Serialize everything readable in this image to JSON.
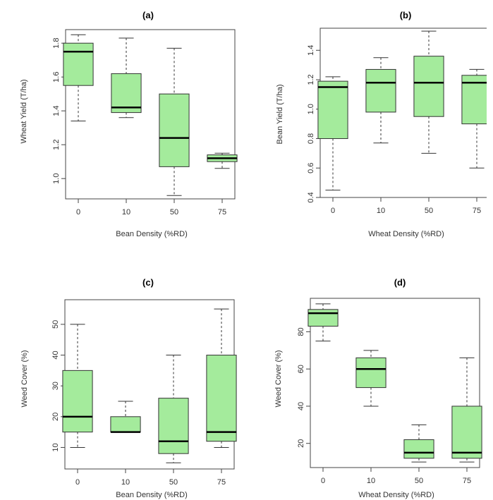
{
  "colors": {
    "box_fill": "#a4eb9c",
    "box_stroke": "#333333",
    "median": "#000000",
    "frame": "#444444"
  },
  "chart_data": [
    {
      "type": "box",
      "title": "(a)",
      "xlabel": "Bean Density (%RD)",
      "ylabel": "Wheat Yield (T/ha)",
      "categories": [
        "0",
        "10",
        "50",
        "75"
      ],
      "ylim": [
        0.88,
        1.88
      ],
      "yticks": [
        "1.0",
        "1.2",
        "1.4",
        "1.6",
        "1.8"
      ],
      "boxes": [
        {
          "min": 1.34,
          "q1": 1.55,
          "median": 1.75,
          "q3": 1.8,
          "max": 1.85
        },
        {
          "min": 1.36,
          "q1": 1.39,
          "median": 1.42,
          "q3": 1.62,
          "max": 1.83
        },
        {
          "min": 0.9,
          "q1": 1.07,
          "median": 1.24,
          "q3": 1.5,
          "max": 1.77
        },
        {
          "min": 1.06,
          "q1": 1.1,
          "median": 1.12,
          "q3": 1.14,
          "max": 1.15
        }
      ]
    },
    {
      "type": "box",
      "title": "(b)",
      "xlabel": "Wheat Density (%RD)",
      "ylabel": "Bean Yield (T/ha)",
      "categories": [
        "0",
        "10",
        "50",
        "75"
      ],
      "ylim": [
        0.4,
        1.55
      ],
      "yticks": [
        "0.4",
        "0.6",
        "0.8",
        "1.0",
        "1.2",
        "1.4"
      ],
      "boxes": [
        {
          "min": 0.45,
          "q1": 0.8,
          "median": 1.15,
          "q3": 1.19,
          "max": 1.22
        },
        {
          "min": 0.77,
          "q1": 0.98,
          "median": 1.18,
          "q3": 1.27,
          "max": 1.35
        },
        {
          "min": 0.7,
          "q1": 0.95,
          "median": 1.18,
          "q3": 1.36,
          "max": 1.53
        },
        {
          "min": 0.6,
          "q1": 0.9,
          "median": 1.18,
          "q3": 1.23,
          "max": 1.27
        }
      ]
    },
    {
      "type": "box",
      "title": "(c)",
      "xlabel": "Bean Density (%RD)",
      "ylabel": "Weed Cover (%)",
      "categories": [
        "0",
        "10",
        "50",
        "75"
      ],
      "ylim": [
        3,
        58
      ],
      "yticks": [
        "10",
        "20",
        "30",
        "40",
        "50"
      ],
      "boxes": [
        {
          "min": 10,
          "q1": 15,
          "median": 20,
          "q3": 35,
          "max": 50
        },
        {
          "min": 15,
          "q1": 15,
          "median": 15,
          "q3": 20,
          "max": 25
        },
        {
          "min": 5,
          "q1": 8,
          "median": 12,
          "q3": 26,
          "max": 40
        },
        {
          "min": 10,
          "q1": 12,
          "median": 15,
          "q3": 40,
          "max": 55
        }
      ]
    },
    {
      "type": "box",
      "title": "(d)",
      "xlabel": "Wheat Density (%RD)",
      "ylabel": "Weed Cover (%)",
      "categories": [
        "0",
        "10",
        "50",
        "75"
      ],
      "ylim": [
        7,
        98
      ],
      "yticks": [
        "20",
        "40",
        "60",
        "80"
      ],
      "boxes": [
        {
          "min": 75,
          "q1": 83,
          "median": 90,
          "q3": 92,
          "max": 95
        },
        {
          "min": 40,
          "q1": 50,
          "median": 60,
          "q3": 66,
          "max": 70
        },
        {
          "min": 10,
          "q1": 12,
          "median": 15,
          "q3": 22,
          "max": 30
        },
        {
          "min": 10,
          "q1": 12,
          "median": 15,
          "q3": 40,
          "max": 66
        }
      ]
    }
  ]
}
